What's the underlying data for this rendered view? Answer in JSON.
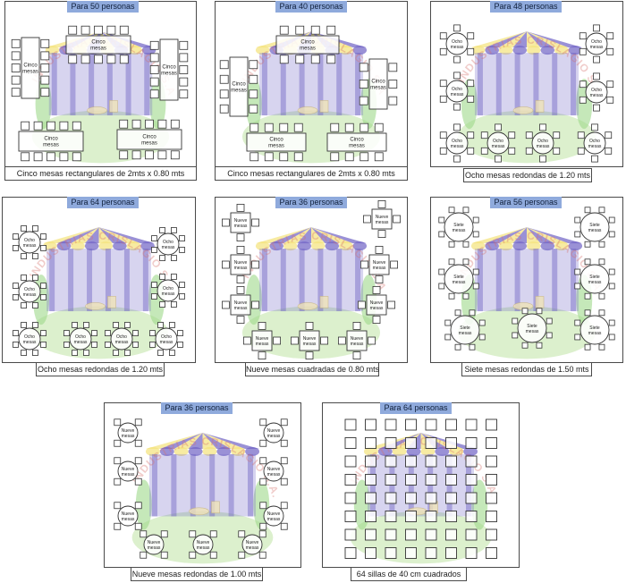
{
  "watermark": "INDUSTRIAS CRISLAGIO S.A. de C.V.",
  "colors": {
    "title_bg": "#8faadc",
    "frame": "#4a4a4a",
    "watermark": "#d6706a",
    "tent_stripe": "#f4e27a",
    "tent_body": "#6f63c4",
    "lawn": "#bfe3a4"
  },
  "panels": [
    {
      "title": "Para 50 personas",
      "caption": "Cinco mesas rectangulares de  2mts x  0.80 mts",
      "table_label": "Cinco mesas",
      "layout": "rect50"
    },
    {
      "title": "Para 40 personas",
      "caption": "Cinco mesas rectangulares de  2mts x  0.80 mts",
      "table_label": "Cinco mesas",
      "layout": "rect40"
    },
    {
      "title": "Para 48 personas",
      "caption": "Ocho mesas redondas de 1.20 mts",
      "table_label": "Ocho mesas",
      "layout": "round8"
    },
    {
      "title": "Para 64 personas",
      "caption": "Ocho mesas redondas de 1.20 mts",
      "table_label": "Ocho mesas",
      "layout": "round8b"
    },
    {
      "title": "Para 36 personas",
      "caption": "Nueve mesas cuadradas de 0.80 mts",
      "table_label": "Nueve mesas",
      "layout": "square9"
    },
    {
      "title": "Para 56 personas",
      "caption": "Siete mesas redondas de 1.50 mts",
      "table_label": "Siete mesas",
      "layout": "round7"
    },
    {
      "title": "Para 36 personas",
      "caption": "Nueve mesas redondas de 1.00 mts",
      "table_label": "Nueve mesas",
      "layout": "round9"
    },
    {
      "title": "Para 64 personas",
      "caption": "64 sillas de 40 cm cuadrados",
      "table_label": "",
      "layout": "chairs64"
    }
  ]
}
